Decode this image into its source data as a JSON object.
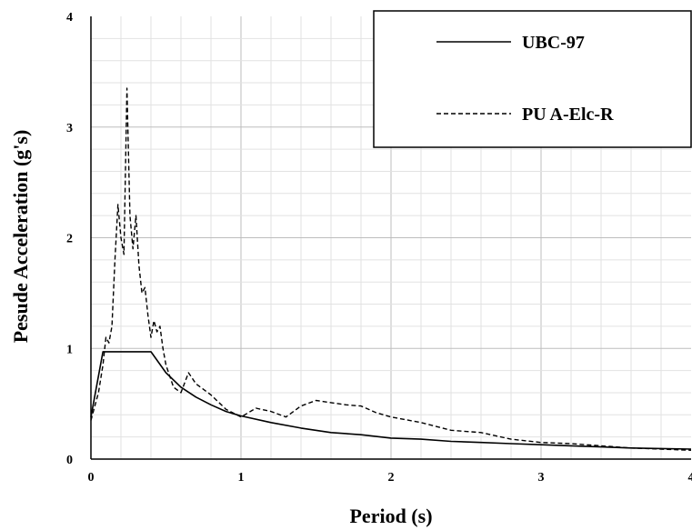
{
  "chart_data": {
    "type": "line",
    "title": "",
    "xlabel": "Period (s)",
    "ylabel": "Pesude Acceleration (g's)",
    "xlim": [
      0,
      4
    ],
    "ylim": [
      0,
      4
    ],
    "x_ticks": [
      "0",
      "1",
      "2",
      "3",
      "4"
    ],
    "y_ticks": [
      "0",
      "1",
      "2",
      "3",
      "4"
    ],
    "grid": true,
    "minor_grid": true,
    "legend_position": "top-right",
    "series": [
      {
        "name": "UBC-97",
        "style": "solid",
        "color": "#000000",
        "points": [
          [
            0,
            0.38
          ],
          [
            0.08,
            0.97
          ],
          [
            0.4,
            0.97
          ],
          [
            0.5,
            0.78
          ],
          [
            0.6,
            0.65
          ],
          [
            0.7,
            0.56
          ],
          [
            0.8,
            0.49
          ],
          [
            0.9,
            0.43
          ],
          [
            1.0,
            0.39
          ],
          [
            1.2,
            0.33
          ],
          [
            1.4,
            0.28
          ],
          [
            1.6,
            0.24
          ],
          [
            1.8,
            0.22
          ],
          [
            2.0,
            0.19
          ],
          [
            2.2,
            0.18
          ],
          [
            2.4,
            0.16
          ],
          [
            2.6,
            0.15
          ],
          [
            2.8,
            0.14
          ],
          [
            3.0,
            0.13
          ],
          [
            3.2,
            0.12
          ],
          [
            3.4,
            0.11
          ],
          [
            3.6,
            0.1
          ],
          [
            3.8,
            0.095
          ],
          [
            4.0,
            0.09
          ]
        ]
      },
      {
        "name": "PU A-Elc-R",
        "style": "dashed",
        "color": "#000000",
        "points": [
          [
            0,
            0.35
          ],
          [
            0.05,
            0.6
          ],
          [
            0.08,
            0.85
          ],
          [
            0.1,
            1.1
          ],
          [
            0.12,
            1.05
          ],
          [
            0.14,
            1.2
          ],
          [
            0.16,
            1.8
          ],
          [
            0.18,
            2.3
          ],
          [
            0.2,
            2.0
          ],
          [
            0.22,
            1.85
          ],
          [
            0.24,
            3.35
          ],
          [
            0.26,
            2.2
          ],
          [
            0.28,
            1.9
          ],
          [
            0.3,
            2.2
          ],
          [
            0.32,
            1.75
          ],
          [
            0.34,
            1.5
          ],
          [
            0.36,
            1.55
          ],
          [
            0.38,
            1.3
          ],
          [
            0.4,
            1.1
          ],
          [
            0.42,
            1.25
          ],
          [
            0.44,
            1.15
          ],
          [
            0.46,
            1.2
          ],
          [
            0.48,
            1.0
          ],
          [
            0.5,
            0.85
          ],
          [
            0.55,
            0.65
          ],
          [
            0.6,
            0.6
          ],
          [
            0.65,
            0.78
          ],
          [
            0.7,
            0.68
          ],
          [
            0.8,
            0.58
          ],
          [
            0.9,
            0.45
          ],
          [
            1.0,
            0.38
          ],
          [
            1.1,
            0.46
          ],
          [
            1.2,
            0.43
          ],
          [
            1.3,
            0.38
          ],
          [
            1.4,
            0.48
          ],
          [
            1.5,
            0.53
          ],
          [
            1.6,
            0.51
          ],
          [
            1.7,
            0.49
          ],
          [
            1.8,
            0.48
          ],
          [
            1.9,
            0.42
          ],
          [
            2.0,
            0.38
          ],
          [
            2.2,
            0.33
          ],
          [
            2.4,
            0.26
          ],
          [
            2.6,
            0.24
          ],
          [
            2.8,
            0.18
          ],
          [
            3.0,
            0.15
          ],
          [
            3.2,
            0.14
          ],
          [
            3.4,
            0.12
          ],
          [
            3.6,
            0.1
          ],
          [
            3.8,
            0.09
          ],
          [
            4.0,
            0.08
          ]
        ]
      }
    ]
  }
}
